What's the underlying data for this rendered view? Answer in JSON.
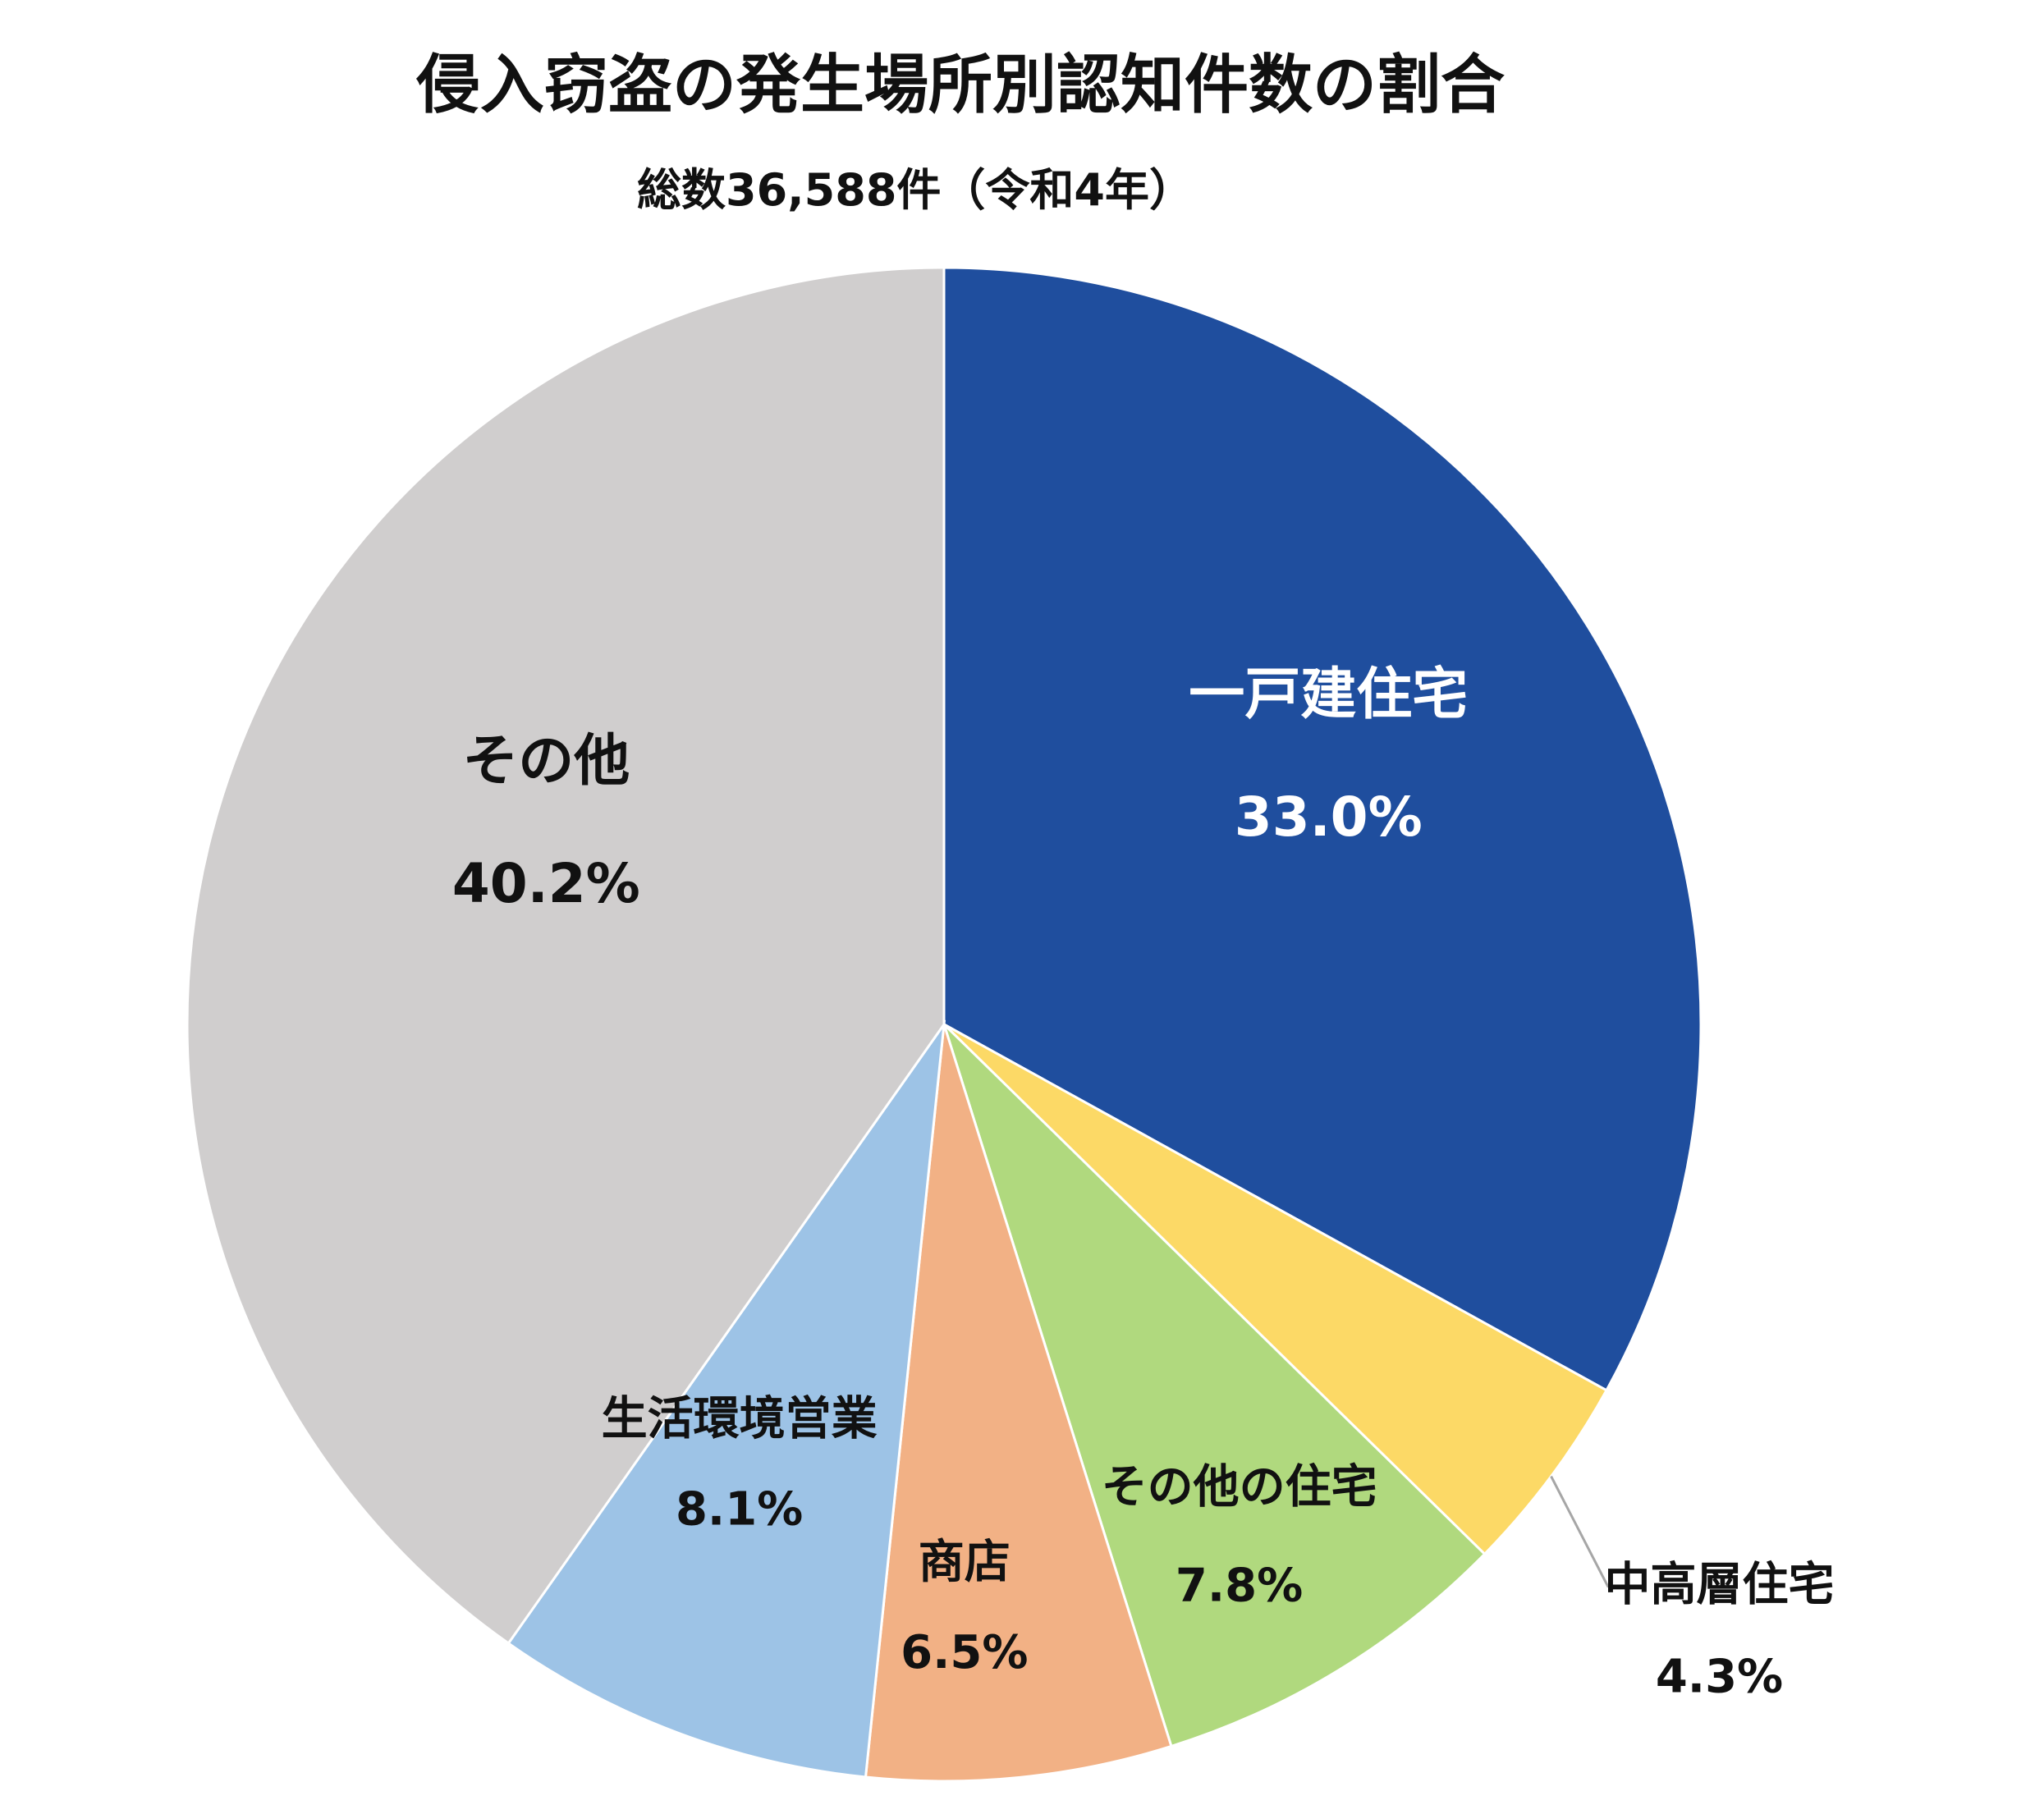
{
  "chart_data": {
    "type": "pie",
    "title": "侵入窃盗の発生場所別認知件数の割合",
    "subtitle": "総数36,588件（令和4年）",
    "start_angle_deg": 0,
    "direction": "clockwise",
    "slices": [
      {
        "label": "一戸建住宅",
        "value": 33.0,
        "value_label": "33.0%",
        "color": "#1F4E9E",
        "text_color": "#FFFFFF"
      },
      {
        "label": "中高層住宅",
        "value": 4.3,
        "value_label": "4.3%",
        "color": "#FCD966",
        "text_color": "#111111"
      },
      {
        "label": "その他の住宅",
        "value": 7.8,
        "value_label": "7.8%",
        "color": "#B0D97E",
        "text_color": "#111111"
      },
      {
        "label": "商店",
        "value": 6.5,
        "value_label": "6.5%",
        "color": "#F2B185",
        "text_color": "#111111"
      },
      {
        "label": "生活環境営業",
        "value": 8.1,
        "value_label": "8.1%",
        "color": "#9DC3E6",
        "text_color": "#111111"
      },
      {
        "label": "その他",
        "value": 40.2,
        "value_label": "40.2%",
        "color": "#D0CECE",
        "text_color": "#111111"
      }
    ]
  }
}
